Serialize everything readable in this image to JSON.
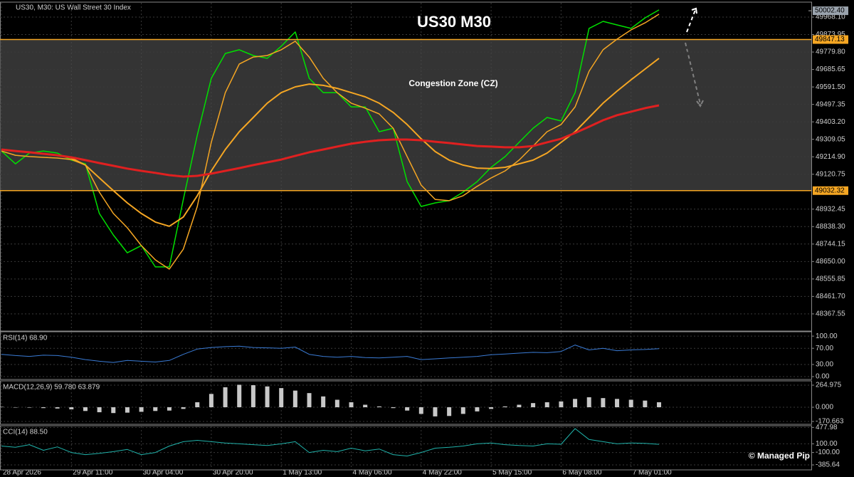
{
  "header": "US30, M30:  US Wall Street 30 Index",
  "watermark": "© Managed Pip",
  "chart_data": [
    {
      "type": "line",
      "title": "US30 M30",
      "annotation": "Congestion Zone (CZ)",
      "categories": [
        "28 Apr 2026",
        null,
        null,
        null,
        null,
        "29 Apr 11:00",
        null,
        null,
        null,
        null,
        "30 Apr 04:00",
        null,
        null,
        null,
        null,
        "30 Apr 20:00",
        null,
        null,
        null,
        null,
        "1 May 13:00",
        null,
        null,
        null,
        null,
        "4 May 06:00",
        null,
        null,
        null,
        null,
        "4 May 22:00",
        null,
        null,
        null,
        null,
        "5 May 15:00",
        null,
        null,
        null,
        null,
        "6 May 08:00",
        null,
        null,
        null,
        null,
        "7 May 01:00",
        null,
        null
      ],
      "series": [
        {
          "color": "#00e000",
          "line_width": 1.5,
          "values": [
            49246,
            49177,
            49235,
            49246,
            49235,
            49197,
            49177,
            48909,
            48793,
            48697,
            48736,
            48621,
            48621,
            48985,
            49331,
            49638,
            49772,
            49792,
            49761,
            49746,
            49811,
            49888,
            49638,
            49561,
            49561,
            49484,
            49484,
            49350,
            49369,
            49081,
            48947,
            48966,
            48978,
            49024,
            49081,
            49158,
            49216,
            49293,
            49369,
            49427,
            49408,
            49561,
            49907,
            49945,
            49926,
            49907,
            49964,
            50007
          ]
        },
        {
          "color": "#f5a623",
          "line_width": 1.5,
          "values": [
            49246,
            49223,
            49216,
            49212,
            49208,
            49200,
            49170,
            49024,
            48909,
            48832,
            48736,
            48659,
            48609,
            48717,
            48947,
            49293,
            49561,
            49715,
            49753,
            49761,
            49792,
            49838,
            49753,
            49638,
            49561,
            49504,
            49477,
            49446,
            49369,
            49216,
            49062,
            48985,
            48978,
            49005,
            49055,
            49101,
            49139,
            49197,
            49273,
            49350,
            49389,
            49484,
            49676,
            49792,
            49849,
            49899,
            49937,
            49984
          ]
        },
        {
          "color": "#f5a623",
          "line_width": 2,
          "values": [
            49254,
            49246,
            49239,
            49231,
            49223,
            49208,
            49170,
            49101,
            49032,
            48966,
            48909,
            48863,
            48840,
            48890,
            49005,
            49139,
            49254,
            49350,
            49427,
            49504,
            49561,
            49592,
            49607,
            49600,
            49584,
            49561,
            49538,
            49504,
            49454,
            49389,
            49312,
            49243,
            49197,
            49170,
            49154,
            49151,
            49158,
            49177,
            49197,
            49235,
            49293,
            49350,
            49427,
            49504,
            49569,
            49630,
            49688,
            49746
          ]
        },
        {
          "color": "#e02020",
          "line_width": 3,
          "values": [
            49254,
            49246,
            49239,
            49231,
            49223,
            49212,
            49197,
            49181,
            49166,
            49151,
            49139,
            49128,
            49116,
            49108,
            49112,
            49124,
            49139,
            49154,
            49170,
            49185,
            49200,
            49220,
            49239,
            49254,
            49270,
            49285,
            49296,
            49304,
            49308,
            49308,
            49304,
            49296,
            49289,
            49281,
            49273,
            49270,
            49266,
            49266,
            49273,
            49293,
            49312,
            49343,
            49377,
            49412,
            49439,
            49458,
            49477,
            49492
          ]
        }
      ],
      "levels": [
        {
          "value": 49847.13,
          "color": "#f5a623"
        },
        {
          "value": 49032.32,
          "color": "#f5a623"
        }
      ],
      "last_price": {
        "value": 50002.4,
        "label": "50002.40"
      },
      "ylim": [
        48275,
        50045
      ],
      "yticks": [
        {
          "value": 49968.1,
          "label": "49968.10"
        },
        49873.95,
        {
          "value": 49779.8,
          "label": "49779.80"
        },
        49685.65,
        {
          "value": 49591.5,
          "label": "49591.50"
        },
        49497.35,
        {
          "value": 49403.2,
          "label": "49403.20"
        },
        49309.05,
        {
          "value": 49214.9,
          "label": "49214.90"
        },
        49120.75,
        48932.45,
        {
          "value": 48838.3,
          "label": "48838.30"
        },
        48744.15,
        {
          "value": 48650,
          "label": "48650.00"
        },
        48555.85,
        {
          "value": 48461.7,
          "label": "48461.70"
        },
        48367.55
      ],
      "grid": true
    },
    {
      "type": "line",
      "title": "RSI(14) 68.90",
      "series": [
        {
          "color": "#3a7bd5",
          "line_width": 1,
          "values": [
            55,
            52,
            50,
            53,
            52,
            48,
            42,
            38,
            35,
            40,
            38,
            36,
            40,
            55,
            68,
            72,
            74,
            75,
            72,
            71,
            70,
            73,
            55,
            50,
            48,
            50,
            47,
            46,
            48,
            50,
            42,
            44,
            46,
            48,
            50,
            54,
            56,
            58,
            60,
            59,
            62,
            78,
            66,
            70,
            64,
            66,
            67,
            68.9
          ]
        }
      ],
      "ylim": [
        -7,
        109
      ],
      "yticks": [
        {
          "value": 100,
          "label": "100.00"
        },
        {
          "value": 70,
          "label": "70.00"
        },
        {
          "value": 30,
          "label": "30.00"
        },
        {
          "value": 0,
          "label": "0.00"
        }
      ],
      "grid": true
    },
    {
      "type": "bar",
      "title": "MACD(12,26,9) 59.780 63.879",
      "color": "#c8c8c8",
      "values": [
        5,
        0,
        -5,
        -10,
        -15,
        -25,
        -45,
        -60,
        -70,
        -65,
        -55,
        -45,
        -40,
        -20,
        60,
        160,
        240,
        270,
        265,
        250,
        230,
        200,
        170,
        130,
        90,
        60,
        30,
        10,
        -10,
        -40,
        -80,
        -110,
        -105,
        -80,
        -50,
        -20,
        10,
        30,
        50,
        60,
        70,
        100,
        120,
        110,
        100,
        90,
        80,
        60
      ],
      "ylim": [
        -205,
        308
      ],
      "yticks": [
        264.975,
        {
          "value": 0,
          "label": "0.000"
        },
        -170.663
      ],
      "grid": true
    },
    {
      "type": "line",
      "title": "CCI(14) 88.50",
      "series": [
        {
          "color": "#20b2aa",
          "line_width": 1,
          "values": [
            50,
            20,
            80,
            -50,
            30,
            -100,
            -150,
            -120,
            -80,
            -30,
            -150,
            -100,
            50,
            150,
            180,
            150,
            120,
            100,
            80,
            60,
            100,
            150,
            -100,
            -50,
            -80,
            0,
            -60,
            -20,
            -150,
            -180,
            -100,
            0,
            20,
            50,
            100,
            120,
            80,
            60,
            50,
            100,
            90,
            450,
            200,
            150,
            100,
            120,
            110,
            88.5
          ]
        }
      ],
      "ylim": [
        -500,
        500
      ],
      "yticks": [
        477.98,
        {
          "value": 100,
          "label": "100.00"
        },
        {
          "value": -100,
          "label": "-100.00"
        },
        -385.64
      ],
      "grid": true
    }
  ]
}
